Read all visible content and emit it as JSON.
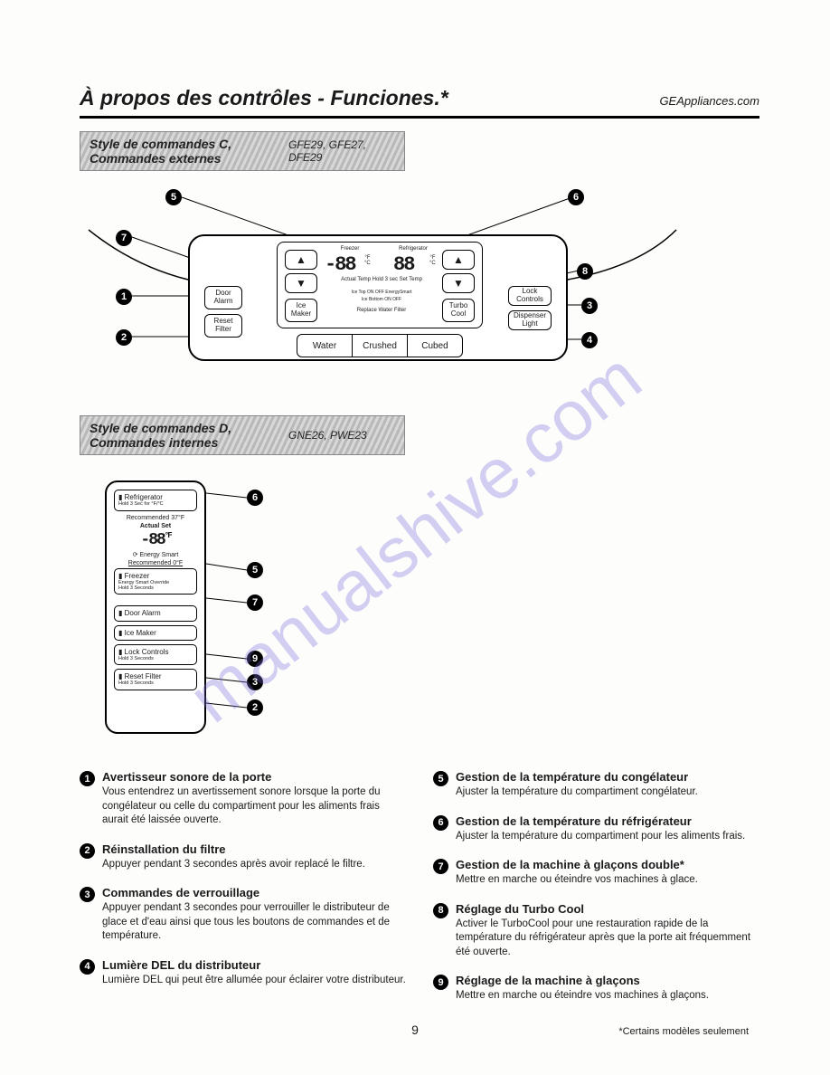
{
  "header": {
    "title": "À propos des contrôles - Funciones.*",
    "site": "GEAppliances.com"
  },
  "style_c": {
    "label": "Style de commandes C,\nCommandes externes",
    "models": "GFE29, GFE27,\nDFE29",
    "callouts": [
      "1",
      "2",
      "3",
      "4",
      "5",
      "6",
      "7",
      "8"
    ],
    "buttons": {
      "door_alarm": "Door\nAlarm",
      "reset_filter": "Reset\nFilter",
      "ice_maker": "Ice\nMaker",
      "turbo_cool": "Turbo\nCool",
      "lock_controls": "Lock\nControls",
      "dispenser_light": "Dispenser\nLight"
    },
    "display": {
      "freezer_label": "Freezer",
      "fridge_label": "Refrigerator",
      "freezer_temp": "-88",
      "fridge_temp": "88",
      "unit": "°F\n°C",
      "info_line": "Actual Temp Hold 3 sec Set Temp",
      "status1": "Ice Top    ON OFF   EnergySmart",
      "status2": "Ice Bottom  ON OFF",
      "status3": "Replace Water Filter"
    },
    "dispenser": {
      "water": "Water",
      "crushed": "Crushed",
      "cubed": "Cubed"
    }
  },
  "style_d": {
    "label": "Style de commandes D,\nCommandes internes",
    "models": "GNE26, PWE23",
    "callouts": [
      "6",
      "5",
      "7",
      "9",
      "3",
      "2"
    ],
    "panel": {
      "refrigerator": "Refrigerator",
      "refrigerator_sub": "Hold 3 Sec for °F/°C",
      "recommended_top": "Recommended 37°F",
      "actual_set": "Actual Set",
      "temp": "-88",
      "unit": "°F",
      "energy_smart": "⟳ Energy Smart",
      "recommended_bot": "Recommended 0°F",
      "freezer": "Freezer",
      "freezer_sub": "Energy Smart Override\nHold 3 Seconds",
      "door_alarm": "Door Alarm",
      "ice_maker": "Ice Maker",
      "lock_controls": "Lock Controls",
      "lock_sub": "Hold 3 Seconds",
      "reset_filter": "Reset Filter",
      "reset_sub": "Hold 3 Seconds"
    }
  },
  "descriptions": {
    "left": [
      {
        "n": "1",
        "title": "Avertisseur sonore de la porte",
        "body": "Vous entendrez un avertissement sonore lorsque la porte du congélateur ou celle du compartiment pour les aliments frais aurait été laissée ouverte."
      },
      {
        "n": "2",
        "title": "Réinstallation du filtre",
        "body": "Appuyer pendant 3 secondes après avoir replacé le filtre."
      },
      {
        "n": "3",
        "title": "Commandes de verrouillage",
        "body": "Appuyer pendant 3 secondes pour verrouiller le distributeur de glace et d'eau ainsi que tous les boutons de commandes et de température."
      },
      {
        "n": "4",
        "title": "Lumière DEL du distributeur",
        "body": "Lumière DEL qui peut être allumée pour éclairer votre distributeur."
      }
    ],
    "right": [
      {
        "n": "5",
        "title": "Gestion de la température du congélateur",
        "body": "Ajuster la température du compartiment congélateur."
      },
      {
        "n": "6",
        "title": "Gestion de la température du réfrigérateur",
        "body": "Ajuster la température du compartiment pour les aliments frais."
      },
      {
        "n": "7",
        "title": "Gestion de la machine à glaçons double*",
        "body": "Mettre en marche ou éteindre vos machines à glace."
      },
      {
        "n": "8",
        "title": "Réglage du Turbo Cool",
        "body": "Activer le TurboCool pour une restauration rapide de la température du réfrigérateur après que la porte ait fréquemment été ouverte."
      },
      {
        "n": "9",
        "title": "Réglage de la machine à glaçons",
        "body": "Mettre en marche ou éteindre vos machines à glaçons."
      }
    ]
  },
  "watermark": "manualshive.com",
  "page_number": "9",
  "footnote": "*Certains modèles seulement",
  "colors": {
    "ink": "#000000",
    "bg": "#fdfdfc",
    "wm": "rgba(120,110,220,0.32)"
  }
}
